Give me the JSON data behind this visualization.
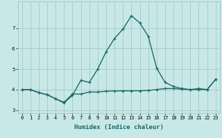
{
  "xlabel": "Humidex (Indice chaleur)",
  "bg_color": "#c8e8e8",
  "grid_color": "#a8cccc",
  "line_color": "#1a6868",
  "line1_x": [
    0,
    1,
    2,
    3,
    4,
    5,
    6,
    7,
    8,
    9,
    10,
    11,
    12,
    13,
    14,
    15,
    16,
    17,
    18,
    19,
    20,
    21,
    22,
    23
  ],
  "line1_y": [
    4.0,
    4.0,
    3.85,
    3.75,
    3.55,
    3.38,
    3.78,
    3.78,
    3.88,
    3.88,
    3.92,
    3.93,
    3.94,
    3.94,
    3.94,
    3.96,
    4.0,
    4.05,
    4.05,
    4.02,
    4.0,
    4.0,
    4.0,
    4.5
  ],
  "line2_x": [
    0,
    1,
    2,
    3,
    4,
    5,
    6,
    7,
    8,
    9,
    10,
    11,
    12,
    13,
    14,
    15,
    16,
    17,
    18,
    19,
    20,
    21,
    22,
    23
  ],
  "line2_y": [
    4.0,
    4.0,
    3.85,
    3.75,
    3.55,
    3.35,
    3.72,
    4.45,
    4.35,
    5.0,
    5.85,
    6.5,
    6.95,
    7.6,
    7.25,
    6.6,
    5.05,
    4.35,
    4.15,
    4.05,
    4.0,
    4.05,
    4.0,
    4.5
  ],
  "ylim": [
    2.85,
    8.3
  ],
  "xlim": [
    -0.5,
    23.5
  ],
  "yticks": [
    3,
    4,
    5,
    6,
    7
  ],
  "xticks": [
    0,
    1,
    2,
    3,
    4,
    5,
    6,
    7,
    8,
    9,
    10,
    11,
    12,
    13,
    14,
    15,
    16,
    17,
    18,
    19,
    20,
    21,
    22,
    23
  ],
  "xtick_labels": [
    "0",
    "1",
    "2",
    "3",
    "4",
    "5",
    "6",
    "7",
    "8",
    "9",
    "10",
    "11",
    "12",
    "13",
    "14",
    "15",
    "16",
    "17",
    "18",
    "19",
    "20",
    "21",
    "22",
    "23"
  ],
  "marker": "+",
  "marker_size": 3.5,
  "line_width": 1.0,
  "axis_fontsize": 6.5,
  "tick_fontsize": 5.0
}
